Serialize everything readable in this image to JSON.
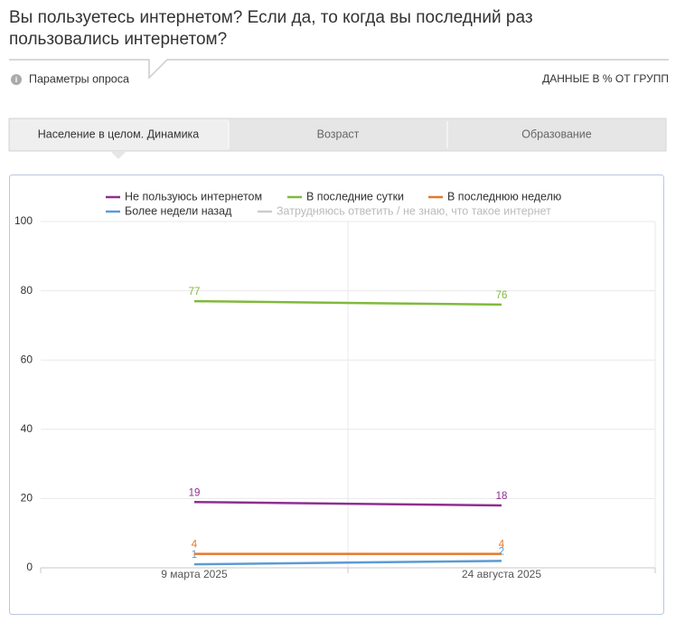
{
  "header": {
    "title_lines": [
      "Вы пользуетесь интернетом? Если да, то когда вы последний раз",
      "пользовались интернетом?"
    ],
    "params_label": "Параметры опроса",
    "units_note": "ДАННЫЕ В % ОТ ГРУПП"
  },
  "tabs": [
    "Население в целом. Динамика",
    "Возраст",
    "Образование"
  ],
  "chart_data": {
    "type": "line",
    "categories": [
      "9 марта 2025",
      "24 августа 2025"
    ],
    "series": [
      {
        "name": "Не пользуюсь интернетом",
        "color": "#8e2f8f",
        "values": [
          19,
          18
        ]
      },
      {
        "name": "В последние сутки",
        "color": "#7fba3c",
        "values": [
          77,
          76
        ]
      },
      {
        "name": "В последнюю неделю",
        "color": "#e5782a",
        "values": [
          4,
          4
        ]
      },
      {
        "name": "Более недели назад",
        "color": "#5b9bd5",
        "values": [
          1,
          2
        ]
      },
      {
        "name": "Затрудняюсь ответить / не знаю, что такое интернет",
        "color": "#c8c8c8",
        "values": [
          null,
          null
        ],
        "hidden": true
      }
    ],
    "ylim": [
      0,
      100
    ],
    "yticks": [
      0,
      20,
      40,
      60,
      80,
      100
    ],
    "grid": true
  }
}
